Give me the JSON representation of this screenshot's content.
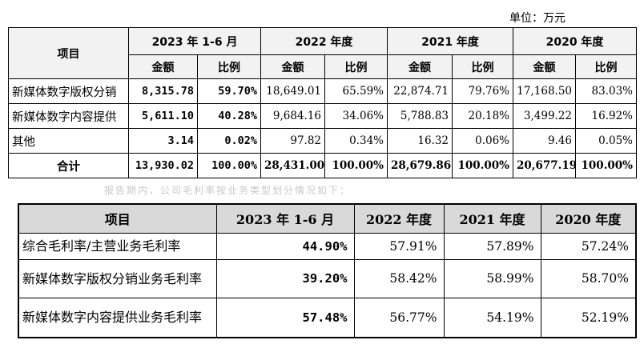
{
  "unit_label": "单位：万元",
  "table1": {
    "headers": {
      "item": "项目",
      "periods": [
        "2023 年 1-6 月",
        "2022 年度",
        "2021 年度",
        "2020 年度"
      ],
      "amount": "金额",
      "ratio": "比例"
    },
    "rows": [
      {
        "label": "新媒体数字版权分销",
        "cells": [
          "8,315.78",
          "59.70%",
          "18,649.01",
          "65.59%",
          "22,874.71",
          "79.76%",
          "17,168.50",
          "83.03%"
        ]
      },
      {
        "label": "新媒体数字内容提供",
        "cells": [
          "5,611.10",
          "40.28%",
          "9,684.16",
          "34.06%",
          "5,788.83",
          "20.18%",
          "3,499.22",
          "16.92%"
        ]
      },
      {
        "label": "其他",
        "cells": [
          "3.14",
          "0.02%",
          "97.82",
          "0.34%",
          "16.32",
          "0.06%",
          "9.46",
          "0.05%"
        ]
      },
      {
        "label": "合计",
        "cells": [
          "13,930.02",
          "100.00%",
          "28,431.00",
          "100.00%",
          "28,679.86",
          "100.00%",
          "20,677.19",
          "100.00%"
        ]
      }
    ]
  },
  "faint_text": "报告期内，公司毛利率按业务类型划分情况如下：",
  "table2": {
    "headers": [
      "项目",
      "2023 年 1-6 月",
      "2022 年度",
      "2021 年度",
      "2020 年度"
    ],
    "rows": [
      {
        "label": "综合毛利率/主营业务毛利率",
        "cells": [
          "44.90%",
          "57.91%",
          "57.89%",
          "57.24%"
        ]
      },
      {
        "label": "新媒体数字版权分销业务毛利率",
        "cells": [
          "39.20%",
          "58.42%",
          "58.99%",
          "58.70%"
        ]
      },
      {
        "label": "新媒体数字内容提供业务毛利率",
        "cells": [
          "57.48%",
          "56.77%",
          "54.19%",
          "52.19%"
        ]
      }
    ]
  }
}
